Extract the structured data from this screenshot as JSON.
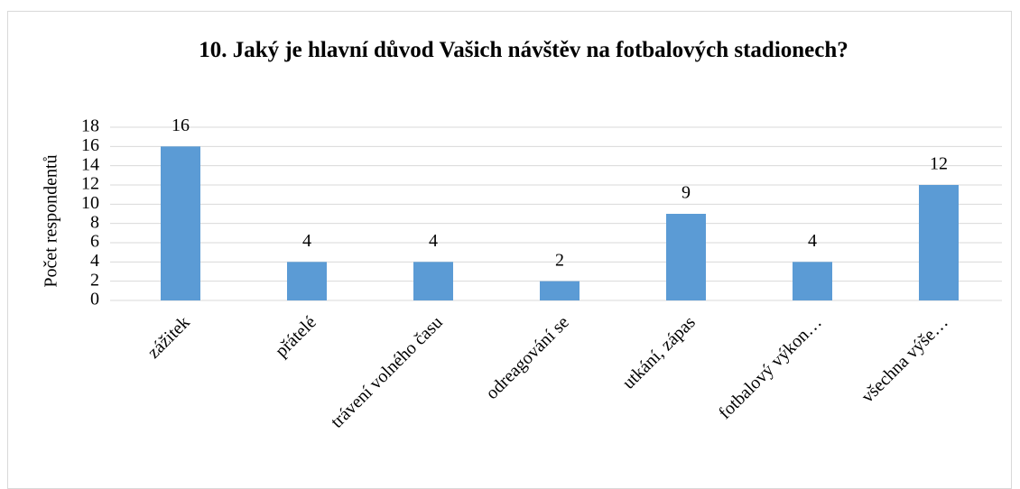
{
  "chart_data": {
    "type": "bar",
    "title": "10. Jaký je hlavní důvod Vašich návštěv na fotbalových stadionech?",
    "y_label": "Počet respondentů",
    "categories": [
      "zážitek",
      "přátelé",
      "trávení volného času",
      "odreagování se",
      "utkání, zápas",
      "fotbalový výkon…",
      "všechna výše…"
    ],
    "values": [
      16,
      4,
      4,
      2,
      9,
      4,
      12
    ],
    "color": "#5b9bd5",
    "ylim": [
      0,
      18
    ],
    "yticks": [
      0,
      2,
      4,
      6,
      8,
      10,
      12,
      14,
      16,
      18
    ],
    "grid": true
  }
}
